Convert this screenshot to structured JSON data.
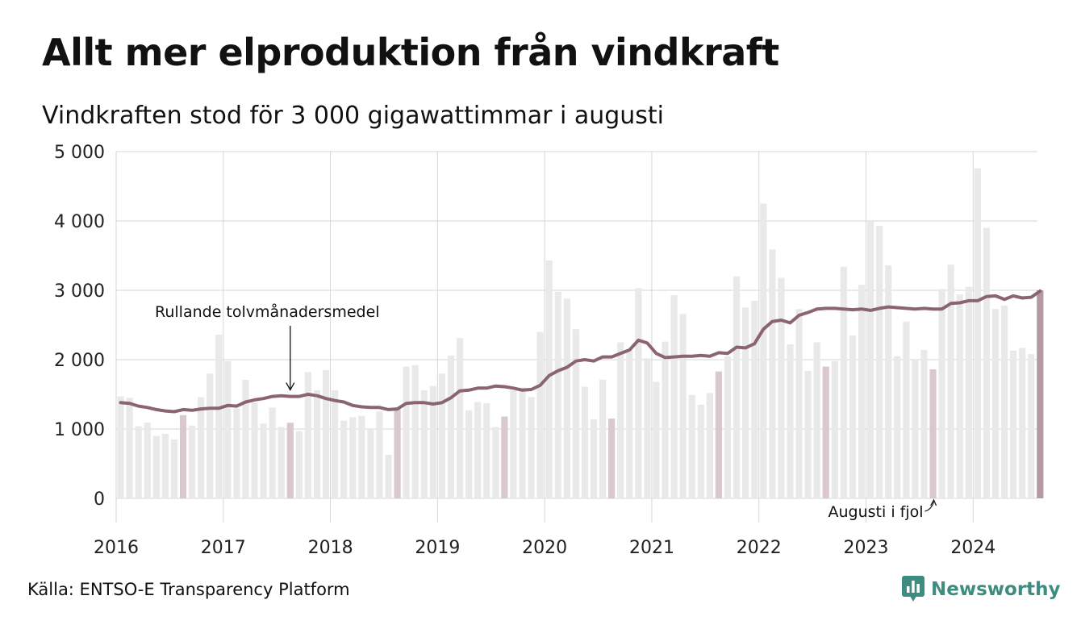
{
  "title": "Allt mer elproduktion från vindkraft",
  "subtitle": "Vindkraften stod för 3 000 gigawattimmar i augusti",
  "source": "Källa: ENTSO-E Transparency Platform",
  "brand": {
    "name": "Newsworthy",
    "icon": "newsworthy-logo-icon"
  },
  "colors": {
    "bar": "#e9e9e9",
    "bar_august": "#d9c8cc",
    "bar_latest": "#b49ba2",
    "line": "#8a6470",
    "grid": "#d6d6d6",
    "brand": "#3d8c7f"
  },
  "chart_data": {
    "type": "bar",
    "y_ticks": [
      "0",
      "1 000",
      "2 000",
      "3 000",
      "4 000",
      "5 000"
    ],
    "ylim": [
      0,
      5000
    ],
    "x_ticks": [
      "2016",
      "2017",
      "2018",
      "2019",
      "2020",
      "2021",
      "2022",
      "2023",
      "2024"
    ],
    "grid": true,
    "start": "2016-01",
    "annotations": [
      {
        "text": "Rullande tolvmånadersmedel",
        "target": "line",
        "x": "2017-08"
      },
      {
        "text": "Augusti i fjol",
        "target": "bar",
        "x": "2023-08"
      }
    ],
    "series": [
      {
        "type": "bar",
        "values": [
          1470,
          1450,
          1040,
          1090,
          900,
          930,
          850,
          1200,
          1050,
          1460,
          1800,
          2360,
          1980,
          1300,
          1710,
          1380,
          1080,
          1310,
          1030,
          1090,
          970,
          1820,
          1560,
          1850,
          1560,
          1120,
          1170,
          1190,
          1010,
          1250,
          630,
          1290,
          1900,
          1920,
          1560,
          1620,
          1800,
          2060,
          2310,
          1270,
          1390,
          1370,
          1030,
          1180,
          1560,
          1600,
          1460,
          2400,
          3430,
          2980,
          2880,
          2440,
          1610,
          1140,
          1710,
          1150,
          2250,
          2140,
          3030,
          2020,
          1680,
          2260,
          2930,
          2660,
          1490,
          1350,
          1520,
          1830,
          2050,
          3200,
          2750,
          2850,
          4250,
          3590,
          3180,
          2220,
          2730,
          1840,
          2250,
          1900,
          1980,
          3340,
          2350,
          3080,
          3990,
          3930,
          3360,
          2050,
          2550,
          2000,
          2140,
          1860,
          3020,
          3370,
          2940,
          3050,
          4760,
          3900,
          2730,
          2780,
          2130,
          2170,
          2080,
          3000
        ]
      },
      {
        "type": "line",
        "values": [
          1380,
          1370,
          1330,
          1310,
          1280,
          1260,
          1250,
          1280,
          1270,
          1290,
          1300,
          1300,
          1340,
          1330,
          1390,
          1420,
          1440,
          1470,
          1480,
          1470,
          1470,
          1500,
          1480,
          1440,
          1410,
          1390,
          1340,
          1320,
          1310,
          1310,
          1280,
          1290,
          1370,
          1380,
          1380,
          1360,
          1380,
          1450,
          1550,
          1560,
          1590,
          1590,
          1620,
          1610,
          1590,
          1560,
          1570,
          1630,
          1770,
          1840,
          1890,
          1980,
          2000,
          1980,
          2040,
          2040,
          2090,
          2140,
          2280,
          2240,
          2090,
          2030,
          2040,
          2050,
          2050,
          2060,
          2050,
          2100,
          2090,
          2180,
          2170,
          2230,
          2440,
          2550,
          2570,
          2530,
          2640,
          2680,
          2730,
          2740,
          2740,
          2730,
          2720,
          2730,
          2710,
          2740,
          2760,
          2750,
          2740,
          2730,
          2740,
          2730,
          2730,
          2810,
          2820,
          2850,
          2850,
          2910,
          2920,
          2870,
          2920,
          2890,
          2900,
          2990
        ]
      }
    ]
  }
}
